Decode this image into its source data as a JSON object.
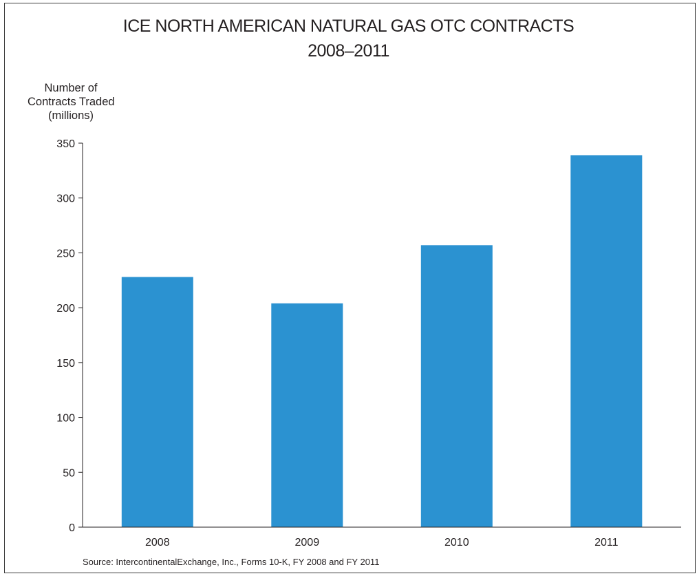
{
  "chart_data": {
    "type": "bar",
    "title": "ICE NORTH AMERICAN NATURAL GAS OTC CONTRACTS",
    "subtitle": "2008–2011",
    "ylabel_lines": [
      "Number of",
      "Contracts Traded",
      "(millions)"
    ],
    "xlabel": "",
    "categories": [
      "2008",
      "2009",
      "2010",
      "2011"
    ],
    "values": [
      228,
      204,
      257,
      339
    ],
    "ylim": [
      0,
      350
    ],
    "yticks": [
      0,
      50,
      100,
      150,
      200,
      250,
      300,
      350
    ],
    "bar_color": "#2b92d1",
    "grid": false,
    "legend": "none",
    "source": "Source: IntercontinentalExchange, Inc., Forms 10-K, FY 2008 and FY 2011"
  }
}
